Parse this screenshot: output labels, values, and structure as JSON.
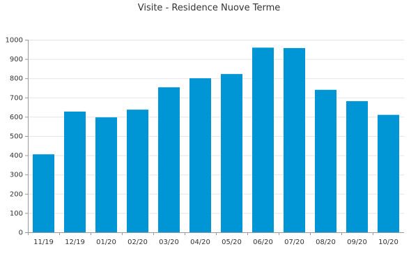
{
  "chart_data": {
    "type": "bar",
    "title": "Visite - Residence Nuove Terme",
    "xlabel": "",
    "ylabel": "",
    "categories": [
      "11/19",
      "12/19",
      "01/20",
      "02/20",
      "03/20",
      "04/20",
      "05/20",
      "06/20",
      "07/20",
      "08/20",
      "09/20",
      "10/20"
    ],
    "values": [
      405,
      627,
      597,
      637,
      753,
      800,
      822,
      959,
      957,
      740,
      681,
      610
    ],
    "ylim": [
      0,
      1000
    ],
    "yticks": [
      0,
      100,
      200,
      300,
      400,
      500,
      600,
      700,
      800,
      900,
      1000
    ],
    "grid": true,
    "legend": "none",
    "bar_color": "#0096d6",
    "grid_color": "#e5e5e5",
    "axis_color": "#999999"
  }
}
